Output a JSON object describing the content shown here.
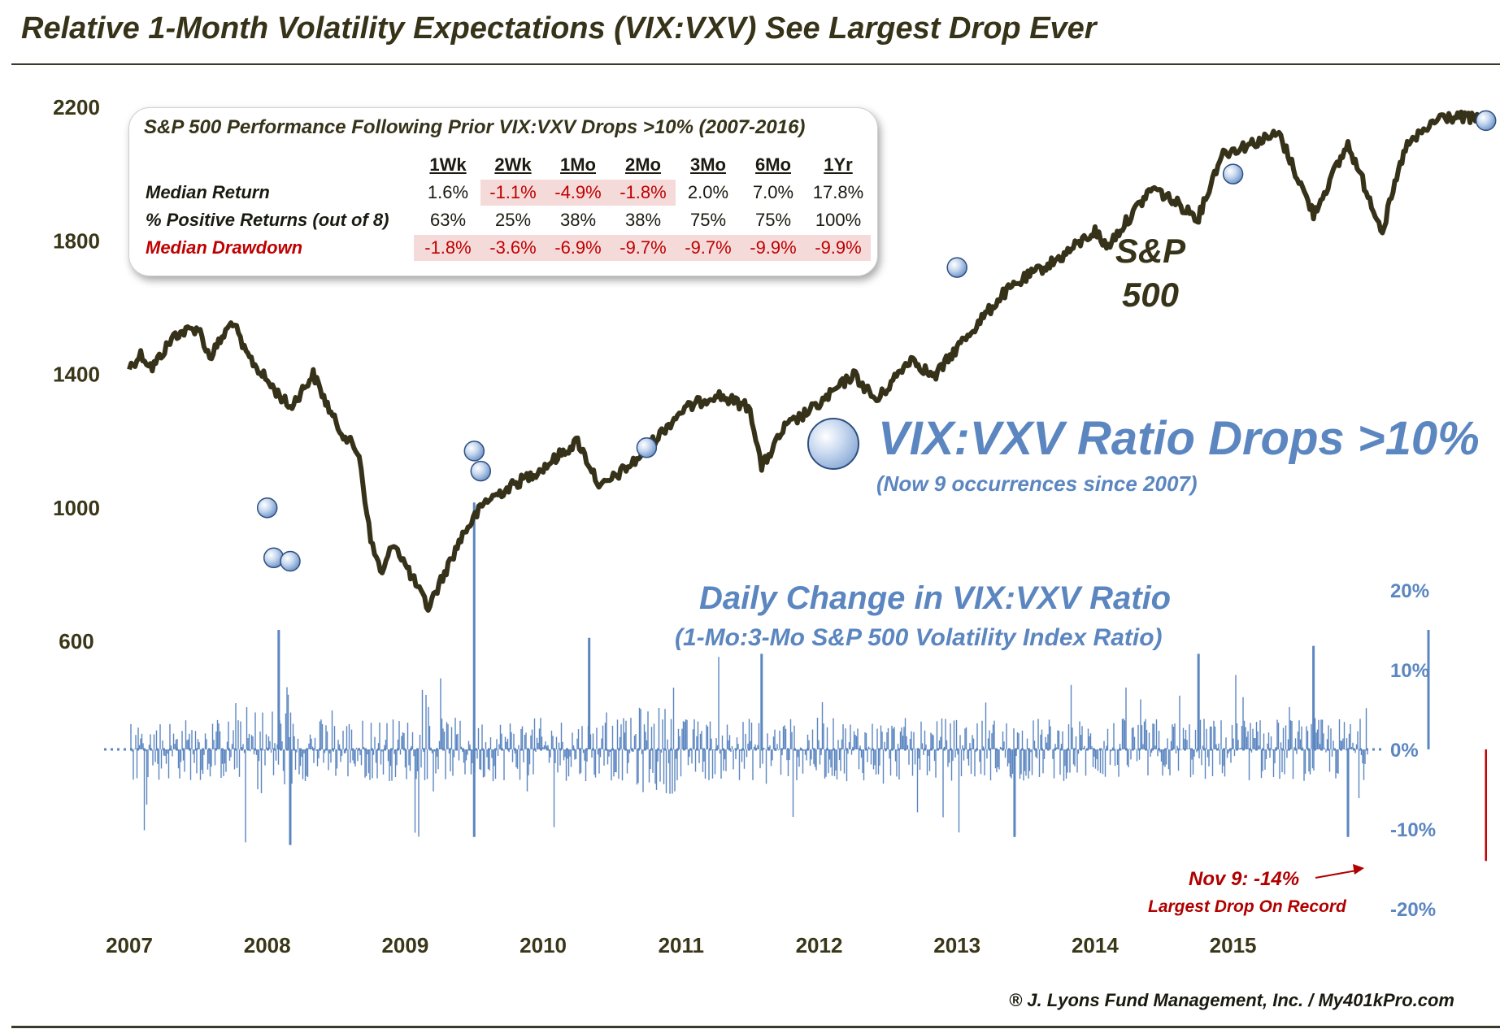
{
  "title": "Relative 1-Month Volatility Expectations (VIX:VXV) See Largest Drop Ever",
  "stats_table": {
    "title": "S&P 500 Performance Following Prior VIX:VXV Drops >10% (2007-2016)",
    "columns": [
      "1Wk",
      "2Wk",
      "1Mo",
      "2Mo",
      "3Mo",
      "6Mo",
      "1Yr"
    ],
    "rows": [
      {
        "label": "Median Return",
        "values": [
          "1.6%",
          "-1.1%",
          "-4.9%",
          "-1.8%",
          "2.0%",
          "7.0%",
          "17.8%"
        ]
      },
      {
        "label": "% Positive Returns (out of 8)",
        "values": [
          "63%",
          "25%",
          "38%",
          "38%",
          "75%",
          "75%",
          "100%"
        ]
      },
      {
        "label": "Median Drawdown",
        "values": [
          "-1.8%",
          "-3.6%",
          "-6.9%",
          "-9.7%",
          "-9.7%",
          "-9.9%",
          "-9.9%"
        ]
      }
    ]
  },
  "series_label": "S&P 500",
  "legend": {
    "label": "VIX:VXV Ratio Drops >10%",
    "sub": "(Now 9 occurrences since 2007)"
  },
  "vix_panel": {
    "title": "Daily Change in VIX:VXV Ratio",
    "sub": "(1-Mo:3-Mo S&P 500 Volatility Index Ratio)"
  },
  "annotation": {
    "text": "Nov 9: -14%",
    "sub": "Largest Drop On Record"
  },
  "copyright": "® J. Lyons Fund Management, Inc. / My401kPro.com",
  "colors": {
    "sp500_line": "#36321a",
    "vix_bars": "#5b86c0",
    "negative_highlight": "#c00000",
    "marker_fill": "#c7d8ef"
  },
  "chart_data": {
    "type": "line",
    "x_ticks": [
      "2007",
      "2008",
      "2009",
      "2010",
      "2011",
      "2012",
      "2013",
      "2014",
      "2015"
    ],
    "left_axis": {
      "ticks": [
        2200,
        1800,
        1400,
        1000,
        600
      ],
      "range": [
        600,
        2200
      ]
    },
    "right_axis": {
      "ticks": [
        "20%",
        "10%",
        "0%",
        "-10%",
        "-20%"
      ],
      "range": [
        -20,
        20
      ]
    },
    "sp500_anchors": [
      [
        "2007-01",
        1420
      ],
      [
        "2007-02",
        1460
      ],
      [
        "2007-03",
        1420
      ],
      [
        "2007-05",
        1520
      ],
      [
        "2007-07",
        1540
      ],
      [
        "2007-08",
        1450
      ],
      [
        "2007-10",
        1560
      ],
      [
        "2007-11",
        1470
      ],
      [
        "2008-01",
        1380
      ],
      [
        "2008-03",
        1300
      ],
      [
        "2008-05",
        1400
      ],
      [
        "2008-07",
        1250
      ],
      [
        "2008-09",
        1160
      ],
      [
        "2008-10",
        900
      ],
      [
        "2008-11",
        800
      ],
      [
        "2008-12",
        900
      ],
      [
        "2009-01",
        830
      ],
      [
        "2009-03",
        700
      ],
      [
        "2009-06",
        920
      ],
      [
        "2009-08",
        1020
      ],
      [
        "2009-10",
        1060
      ],
      [
        "2010-01",
        1120
      ],
      [
        "2010-04",
        1200
      ],
      [
        "2010-06",
        1060
      ],
      [
        "2010-09",
        1140
      ],
      [
        "2011-01",
        1290
      ],
      [
        "2011-04",
        1340
      ],
      [
        "2011-07",
        1300
      ],
      [
        "2011-08",
        1120
      ],
      [
        "2011-10",
        1240
      ],
      [
        "2012-01",
        1310
      ],
      [
        "2012-04",
        1400
      ],
      [
        "2012-06",
        1320
      ],
      [
        "2012-09",
        1450
      ],
      [
        "2012-11",
        1390
      ],
      [
        "2013-01",
        1480
      ],
      [
        "2013-05",
        1640
      ],
      [
        "2013-07",
        1690
      ],
      [
        "2013-10",
        1750
      ],
      [
        "2014-01",
        1830
      ],
      [
        "2014-02",
        1780
      ],
      [
        "2014-06",
        1960
      ],
      [
        "2014-10",
        1870
      ],
      [
        "2014-12",
        2060
      ],
      [
        "2015-05",
        2120
      ],
      [
        "2015-08",
        1880
      ],
      [
        "2015-11",
        2090
      ],
      [
        "2016-02",
        1830
      ],
      [
        "2016-04",
        2080
      ],
      [
        "2016-07",
        2170
      ],
      [
        "2016-09",
        2170
      ],
      [
        "2016-11",
        2160
      ]
    ],
    "drop_events": [
      [
        "2008-01",
        1000
      ],
      [
        "2008-01",
        850
      ],
      [
        "2008-03",
        840
      ],
      [
        "2009-07",
        1170
      ],
      [
        "2009-07",
        1110
      ],
      [
        "2010-10",
        1180
      ],
      [
        "2013-01",
        1720
      ],
      [
        "2015-01",
        2000
      ],
      [
        "2016-11",
        2160
      ]
    ],
    "vix_spikes": [
      [
        "2008-02",
        15
      ],
      [
        "2008-03",
        -12
      ],
      [
        "2009-07",
        31
      ],
      [
        "2009-07",
        -11
      ],
      [
        "2010-05",
        14
      ],
      [
        "2011-08",
        12
      ],
      [
        "2013-06",
        -11
      ],
      [
        "2014-10",
        12
      ],
      [
        "2015-08",
        13
      ],
      [
        "2015-11",
        -11
      ],
      [
        "2016-06",
        15
      ],
      [
        "2016-11",
        -14
      ]
    ]
  }
}
